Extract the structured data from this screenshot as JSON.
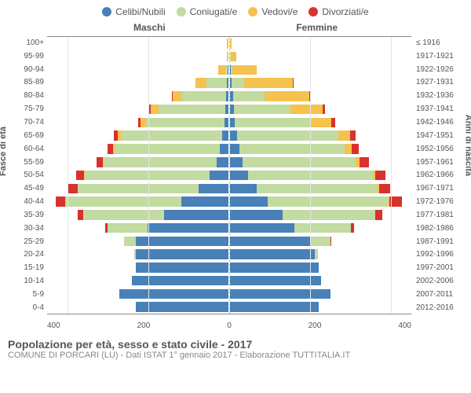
{
  "legend": [
    {
      "label": "Celibi/Nubili",
      "color": "#4880b8"
    },
    {
      "label": "Coniugati/e",
      "color": "#c1dba1"
    },
    {
      "label": "Vedovi/e",
      "color": "#f5c24d"
    },
    {
      "label": "Divorziati/e",
      "color": "#d7322d"
    }
  ],
  "sides": {
    "left": "Maschi",
    "right": "Femmine"
  },
  "axis_left_title": "Fasce di età",
  "axis_right_title": "Anni di nascita",
  "xlim": 450,
  "x_ticks": [
    400,
    200,
    0,
    200,
    400
  ],
  "grid_vals": [
    400,
    200,
    200,
    400
  ],
  "footer_title": "Popolazione per età, sesso e stato civile - 2017",
  "footer_sub": "COMUNE DI PORCARI (LU) - Dati ISTAT 1° gennaio 2017 - Elaborazione TUTTITALIA.IT",
  "rows": [
    {
      "age": "100+",
      "birth": "≤ 1916",
      "m": [
        0,
        0,
        3,
        0
      ],
      "f": [
        0,
        0,
        4,
        0
      ]
    },
    {
      "age": "95-99",
      "birth": "1917-1921",
      "m": [
        0,
        0,
        4,
        0
      ],
      "f": [
        0,
        1,
        14,
        0
      ]
    },
    {
      "age": "90-94",
      "birth": "1922-1926",
      "m": [
        2,
        5,
        18,
        0
      ],
      "f": [
        2,
        4,
        60,
        0
      ]
    },
    {
      "age": "85-89",
      "birth": "1927-1931",
      "m": [
        4,
        50,
        28,
        0
      ],
      "f": [
        4,
        32,
        120,
        2
      ]
    },
    {
      "age": "80-84",
      "birth": "1932-1936",
      "m": [
        6,
        108,
        24,
        2
      ],
      "f": [
        8,
        78,
        110,
        4
      ]
    },
    {
      "age": "75-79",
      "birth": "1937-1941",
      "m": [
        8,
        166,
        18,
        4
      ],
      "f": [
        10,
        140,
        80,
        6
      ]
    },
    {
      "age": "70-74",
      "birth": "1942-1946",
      "m": [
        10,
        194,
        14,
        6
      ],
      "f": [
        12,
        190,
        50,
        10
      ]
    },
    {
      "age": "65-69",
      "birth": "1947-1951",
      "m": [
        16,
        250,
        8,
        10
      ],
      "f": [
        18,
        250,
        30,
        14
      ]
    },
    {
      "age": "60-64",
      "birth": "1952-1956",
      "m": [
        22,
        260,
        4,
        14
      ],
      "f": [
        24,
        260,
        18,
        18
      ]
    },
    {
      "age": "55-59",
      "birth": "1957-1961",
      "m": [
        30,
        280,
        2,
        16
      ],
      "f": [
        32,
        280,
        10,
        22
      ]
    },
    {
      "age": "50-54",
      "birth": "1962-1966",
      "m": [
        46,
        310,
        2,
        20
      ],
      "f": [
        44,
        310,
        6,
        26
      ]
    },
    {
      "age": "45-49",
      "birth": "1967-1971",
      "m": [
        74,
        300,
        1,
        24
      ],
      "f": [
        66,
        300,
        4,
        28
      ]
    },
    {
      "age": "40-44",
      "birth": "1972-1976",
      "m": [
        116,
        290,
        0,
        22
      ],
      "f": [
        94,
        300,
        2,
        30
      ]
    },
    {
      "age": "35-39",
      "birth": "1977-1981",
      "m": [
        160,
        200,
        0,
        14
      ],
      "f": [
        130,
        230,
        0,
        18
      ]
    },
    {
      "age": "30-34",
      "birth": "1982-1986",
      "m": [
        200,
        100,
        0,
        6
      ],
      "f": [
        160,
        140,
        0,
        8
      ]
    },
    {
      "age": "25-29",
      "birth": "1987-1991",
      "m": [
        230,
        30,
        0,
        0
      ],
      "f": [
        200,
        50,
        0,
        2
      ]
    },
    {
      "age": "20-24",
      "birth": "1992-1996",
      "m": [
        230,
        4,
        0,
        0
      ],
      "f": [
        210,
        8,
        0,
        0
      ]
    },
    {
      "age": "15-19",
      "birth": "1997-2001",
      "m": [
        230,
        0,
        0,
        0
      ],
      "f": [
        220,
        0,
        0,
        0
      ]
    },
    {
      "age": "10-14",
      "birth": "2002-2006",
      "m": [
        240,
        0,
        0,
        0
      ],
      "f": [
        225,
        0,
        0,
        0
      ]
    },
    {
      "age": "5-9",
      "birth": "2007-2011",
      "m": [
        270,
        0,
        0,
        0
      ],
      "f": [
        250,
        0,
        0,
        0
      ]
    },
    {
      "age": "0-4",
      "birth": "2012-2016",
      "m": [
        230,
        0,
        0,
        0
      ],
      "f": [
        220,
        0,
        0,
        0
      ]
    }
  ]
}
